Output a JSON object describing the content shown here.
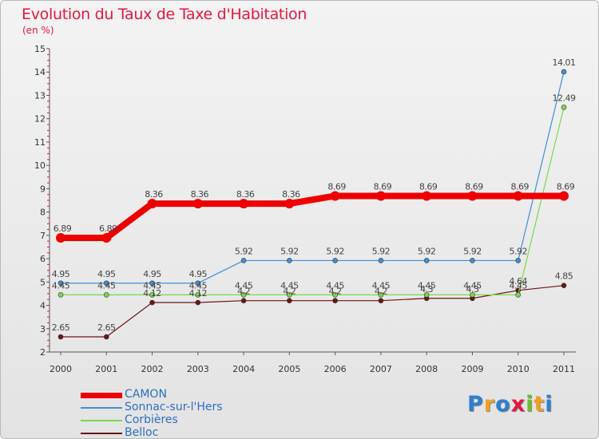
{
  "title": "Evolution du Taux de Taxe d'Habitation",
  "subtitle": "(en %)",
  "logo": {
    "text": "Proxiti",
    "colors": [
      "#2f7fd1",
      "#f0a020",
      "#2f7fd1",
      "#e4173e",
      "#6cbf2a",
      "#f0a020",
      "#2f7fd1"
    ]
  },
  "chart_data": {
    "type": "line",
    "x": [
      "2000",
      "2001",
      "2002",
      "2003",
      "2004",
      "2005",
      "2006",
      "2007",
      "2008",
      "2009",
      "2010",
      "2011"
    ],
    "ylim": [
      2,
      15
    ],
    "yticks": [
      "2",
      "3",
      "4",
      "5",
      "6",
      "7",
      "8",
      "9",
      "10",
      "11",
      "12",
      "13",
      "14",
      "15"
    ],
    "grid": false,
    "legend_position": "bottom-left",
    "series": [
      {
        "name": "CAMON",
        "color": "#ef0000",
        "values": [
          6.89,
          6.89,
          8.36,
          8.36,
          8.36,
          8.36,
          8.69,
          8.69,
          8.69,
          8.69,
          8.69,
          8.69
        ],
        "labels": [
          "6.89",
          "6.89",
          "8.36",
          "8.36",
          "8.36",
          "8.36",
          "8.69",
          "8.69",
          "8.69",
          "8.69",
          "8.69",
          "8.69"
        ]
      },
      {
        "name": "Sonnac-sur-l'Hers",
        "color": "#3f8fd8",
        "values": [
          4.95,
          4.95,
          4.95,
          4.95,
          5.92,
          5.92,
          5.92,
          5.92,
          5.92,
          5.92,
          5.92,
          14.01
        ],
        "labels": [
          "4.95",
          "4.95",
          "4.95",
          "4.95",
          "5.92",
          "5.92",
          "5.92",
          "5.92",
          "5.92",
          "5.92",
          "5.92",
          "14.01"
        ]
      },
      {
        "name": "Corbières",
        "color": "#7ad84c",
        "values": [
          4.45,
          4.45,
          4.45,
          4.45,
          4.45,
          4.45,
          4.45,
          4.45,
          4.45,
          4.45,
          4.45,
          12.49
        ],
        "labels": [
          "4.45",
          "4.45",
          "4.45",
          "4.45",
          "4.45",
          "4.45",
          "4.45",
          "4.45",
          "4.45",
          "4.45",
          "4.45",
          "12.49"
        ]
      },
      {
        "name": "Belloc",
        "color": "#6e1414",
        "values": [
          2.65,
          2.65,
          4.12,
          4.12,
          4.2,
          4.2,
          4.2,
          4.2,
          4.3,
          4.3,
          4.64,
          4.85
        ],
        "labels": [
          "2.65",
          "2.65",
          "4.12",
          "4.12",
          "4.2",
          "4.2",
          "4.2",
          "4.2",
          "4.3",
          "4.3",
          "4.64",
          "4.85"
        ]
      }
    ]
  }
}
